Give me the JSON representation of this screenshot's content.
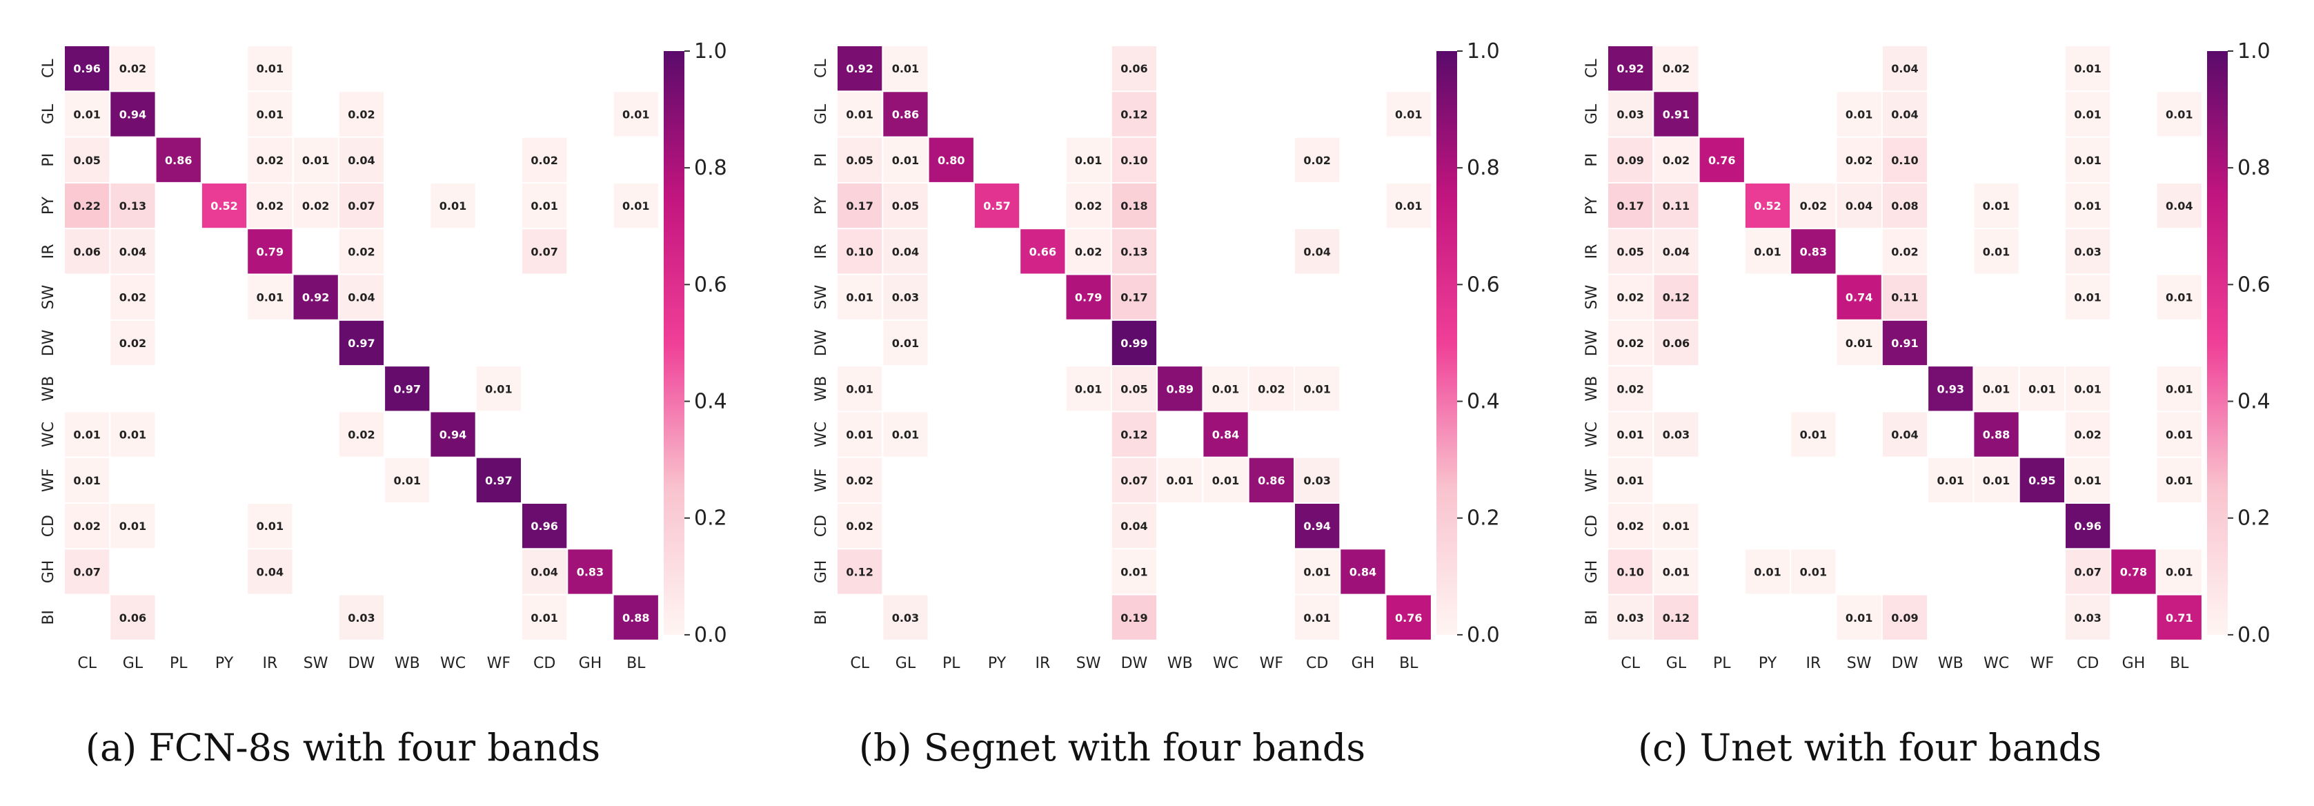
{
  "chart_data": [
    {
      "type": "heatmap",
      "caption": "(a) FCN-8s with four bands",
      "x_labels": [
        "CL",
        "GL",
        "PL",
        "PY",
        "IR",
        "SW",
        "DW",
        "WB",
        "WC",
        "WF",
        "CD",
        "GH",
        "BL"
      ],
      "y_labels": [
        "CL",
        "GL",
        "PI",
        "PY",
        "IR",
        "SW",
        "DW",
        "WB",
        "WC",
        "WF",
        "CD",
        "GH",
        "BI"
      ],
      "colorbar": {
        "min": 0.0,
        "max": 1.0,
        "ticks": [
          "0.0",
          "0.2",
          "0.4",
          "0.6",
          "0.8",
          "1.0"
        ],
        "colors": [
          "#fff5f3",
          "#f9c3ce",
          "#ef3f97",
          "#c2157f",
          "#5a0b6b"
        ]
      },
      "cells": [
        [
          0,
          0,
          0.96
        ],
        [
          0,
          1,
          0.02
        ],
        [
          0,
          4,
          0.01
        ],
        [
          1,
          0,
          0.01
        ],
        [
          1,
          1,
          0.94
        ],
        [
          1,
          4,
          0.01
        ],
        [
          1,
          6,
          0.02
        ],
        [
          1,
          12,
          0.01
        ],
        [
          2,
          0,
          0.05
        ],
        [
          2,
          2,
          0.86
        ],
        [
          2,
          4,
          0.02
        ],
        [
          2,
          5,
          0.01
        ],
        [
          2,
          6,
          0.04
        ],
        [
          2,
          10,
          0.02
        ],
        [
          3,
          0,
          0.22
        ],
        [
          3,
          1,
          0.13
        ],
        [
          3,
          3,
          0.52
        ],
        [
          3,
          4,
          0.02
        ],
        [
          3,
          5,
          0.02
        ],
        [
          3,
          6,
          0.07
        ],
        [
          3,
          8,
          0.01
        ],
        [
          3,
          10,
          0.01
        ],
        [
          3,
          12,
          0.01
        ],
        [
          4,
          0,
          0.06
        ],
        [
          4,
          1,
          0.04
        ],
        [
          4,
          4,
          0.79
        ],
        [
          4,
          6,
          0.02
        ],
        [
          4,
          10,
          0.07
        ],
        [
          5,
          1,
          0.02
        ],
        [
          5,
          4,
          0.01
        ],
        [
          5,
          5,
          0.92
        ],
        [
          5,
          6,
          0.04
        ],
        [
          6,
          1,
          0.02
        ],
        [
          6,
          6,
          0.97
        ],
        [
          7,
          7,
          0.97
        ],
        [
          7,
          9,
          0.01
        ],
        [
          8,
          0,
          0.01
        ],
        [
          8,
          1,
          0.01
        ],
        [
          8,
          6,
          0.02
        ],
        [
          8,
          8,
          0.94
        ],
        [
          9,
          0,
          0.01
        ],
        [
          9,
          7,
          0.01
        ],
        [
          9,
          9,
          0.97
        ],
        [
          10,
          0,
          0.02
        ],
        [
          10,
          1,
          0.01
        ],
        [
          10,
          4,
          0.01
        ],
        [
          10,
          10,
          0.96
        ],
        [
          11,
          0,
          0.07
        ],
        [
          11,
          4,
          0.04
        ],
        [
          11,
          10,
          0.04
        ],
        [
          11,
          11,
          0.83
        ],
        [
          12,
          1,
          0.06
        ],
        [
          12,
          6,
          0.03
        ],
        [
          12,
          10,
          0.01
        ],
        [
          12,
          12,
          0.88
        ]
      ]
    },
    {
      "type": "heatmap",
      "caption": "(b) Segnet with four bands",
      "x_labels": [
        "CL",
        "GL",
        "PL",
        "PY",
        "IR",
        "SW",
        "DW",
        "WB",
        "WC",
        "WF",
        "CD",
        "GH",
        "BL"
      ],
      "y_labels": [
        "CL",
        "GL",
        "PI",
        "PY",
        "IR",
        "SW",
        "DW",
        "WB",
        "WC",
        "WF",
        "CD",
        "GH",
        "BI"
      ],
      "colorbar": {
        "min": 0.0,
        "max": 1.0,
        "ticks": [
          "0.0",
          "0.2",
          "0.4",
          "0.6",
          "0.8",
          "1.0"
        ],
        "colors": [
          "#fff5f3",
          "#f9c3ce",
          "#ef3f97",
          "#c2157f",
          "#5a0b6b"
        ]
      },
      "cells": [
        [
          0,
          0,
          0.92
        ],
        [
          0,
          1,
          0.01
        ],
        [
          0,
          6,
          0.06
        ],
        [
          1,
          0,
          0.01
        ],
        [
          1,
          1,
          0.86
        ],
        [
          1,
          6,
          0.12
        ],
        [
          1,
          12,
          0.01
        ],
        [
          2,
          0,
          0.05
        ],
        [
          2,
          1,
          0.01
        ],
        [
          2,
          2,
          0.8
        ],
        [
          2,
          5,
          0.01
        ],
        [
          2,
          6,
          0.1
        ],
        [
          2,
          10,
          0.02
        ],
        [
          3,
          0,
          0.17
        ],
        [
          3,
          1,
          0.05
        ],
        [
          3,
          3,
          0.57
        ],
        [
          3,
          5,
          0.02
        ],
        [
          3,
          6,
          0.18
        ],
        [
          3,
          12,
          0.01
        ],
        [
          4,
          0,
          0.1
        ],
        [
          4,
          1,
          0.04
        ],
        [
          4,
          4,
          0.66
        ],
        [
          4,
          5,
          0.02
        ],
        [
          4,
          6,
          0.13
        ],
        [
          4,
          10,
          0.04
        ],
        [
          5,
          0,
          0.01
        ],
        [
          5,
          1,
          0.03
        ],
        [
          5,
          5,
          0.79
        ],
        [
          5,
          6,
          0.17
        ],
        [
          6,
          1,
          0.01
        ],
        [
          6,
          6,
          0.99
        ],
        [
          7,
          0,
          0.01
        ],
        [
          7,
          5,
          0.01
        ],
        [
          7,
          6,
          0.05
        ],
        [
          7,
          7,
          0.89
        ],
        [
          7,
          8,
          0.01
        ],
        [
          7,
          9,
          0.02
        ],
        [
          7,
          10,
          0.01
        ],
        [
          8,
          0,
          0.01
        ],
        [
          8,
          1,
          0.01
        ],
        [
          8,
          6,
          0.12
        ],
        [
          8,
          8,
          0.84
        ],
        [
          9,
          0,
          0.02
        ],
        [
          9,
          6,
          0.07
        ],
        [
          9,
          7,
          0.01
        ],
        [
          9,
          8,
          0.01
        ],
        [
          9,
          9,
          0.86
        ],
        [
          9,
          10,
          0.03
        ],
        [
          10,
          0,
          0.02
        ],
        [
          10,
          6,
          0.04
        ],
        [
          10,
          10,
          0.94
        ],
        [
          11,
          0,
          0.12
        ],
        [
          11,
          6,
          0.01
        ],
        [
          11,
          10,
          0.01
        ],
        [
          11,
          11,
          0.84
        ],
        [
          12,
          1,
          0.03
        ],
        [
          12,
          6,
          0.19
        ],
        [
          12,
          10,
          0.01
        ],
        [
          12,
          12,
          0.76
        ]
      ]
    },
    {
      "type": "heatmap",
      "caption": "(c) Unet with four bands",
      "x_labels": [
        "CL",
        "GL",
        "PL",
        "PY",
        "IR",
        "SW",
        "DW",
        "WB",
        "WC",
        "WF",
        "CD",
        "GH",
        "BL"
      ],
      "y_labels": [
        "CL",
        "GL",
        "PI",
        "PY",
        "IR",
        "SW",
        "DW",
        "WB",
        "WC",
        "WF",
        "CD",
        "GH",
        "BI"
      ],
      "colorbar": {
        "min": 0.0,
        "max": 1.0,
        "ticks": [
          "0.0",
          "0.2",
          "0.4",
          "0.6",
          "0.8",
          "1.0"
        ],
        "colors": [
          "#fff5f3",
          "#f9c3ce",
          "#ef3f97",
          "#c2157f",
          "#5a0b6b"
        ]
      },
      "cells": [
        [
          0,
          0,
          0.92
        ],
        [
          0,
          1,
          0.02
        ],
        [
          0,
          6,
          0.04
        ],
        [
          0,
          10,
          0.01
        ],
        [
          1,
          0,
          0.03
        ],
        [
          1,
          1,
          0.91
        ],
        [
          1,
          5,
          0.01
        ],
        [
          1,
          6,
          0.04
        ],
        [
          1,
          10,
          0.01
        ],
        [
          1,
          12,
          0.01
        ],
        [
          2,
          0,
          0.09
        ],
        [
          2,
          1,
          0.02
        ],
        [
          2,
          2,
          0.76
        ],
        [
          2,
          5,
          0.02
        ],
        [
          2,
          6,
          0.1
        ],
        [
          2,
          10,
          0.01
        ],
        [
          3,
          0,
          0.17
        ],
        [
          3,
          1,
          0.11
        ],
        [
          3,
          3,
          0.52
        ],
        [
          3,
          4,
          0.02
        ],
        [
          3,
          5,
          0.04
        ],
        [
          3,
          6,
          0.08
        ],
        [
          3,
          8,
          0.01
        ],
        [
          3,
          10,
          0.01
        ],
        [
          3,
          12,
          0.04
        ],
        [
          4,
          0,
          0.05
        ],
        [
          4,
          1,
          0.04
        ],
        [
          4,
          3,
          0.01
        ],
        [
          4,
          4,
          0.83
        ],
        [
          4,
          6,
          0.02
        ],
        [
          4,
          8,
          0.01
        ],
        [
          4,
          10,
          0.03
        ],
        [
          5,
          0,
          0.02
        ],
        [
          5,
          1,
          0.12
        ],
        [
          5,
          5,
          0.74
        ],
        [
          5,
          6,
          0.11
        ],
        [
          5,
          10,
          0.01
        ],
        [
          5,
          12,
          0.01
        ],
        [
          6,
          0,
          0.02
        ],
        [
          6,
          1,
          0.06
        ],
        [
          6,
          5,
          0.01
        ],
        [
          6,
          6,
          0.91
        ],
        [
          7,
          0,
          0.02
        ],
        [
          7,
          7,
          0.93
        ],
        [
          7,
          8,
          0.01
        ],
        [
          7,
          9,
          0.01
        ],
        [
          7,
          10,
          0.01
        ],
        [
          7,
          12,
          0.01
        ],
        [
          8,
          0,
          0.01
        ],
        [
          8,
          1,
          0.03
        ],
        [
          8,
          4,
          0.01
        ],
        [
          8,
          6,
          0.04
        ],
        [
          8,
          8,
          0.88
        ],
        [
          8,
          10,
          0.02
        ],
        [
          8,
          12,
          0.01
        ],
        [
          9,
          0,
          0.01
        ],
        [
          9,
          7,
          0.01
        ],
        [
          9,
          8,
          0.01
        ],
        [
          9,
          9,
          0.95
        ],
        [
          9,
          10,
          0.01
        ],
        [
          9,
          12,
          0.01
        ],
        [
          10,
          0,
          0.02
        ],
        [
          10,
          1,
          0.01
        ],
        [
          10,
          10,
          0.96
        ],
        [
          11,
          0,
          0.1
        ],
        [
          11,
          1,
          0.01
        ],
        [
          11,
          3,
          0.01
        ],
        [
          11,
          4,
          0.01
        ],
        [
          11,
          10,
          0.07
        ],
        [
          11,
          11,
          0.78
        ],
        [
          11,
          12,
          0.01
        ],
        [
          12,
          0,
          0.03
        ],
        [
          12,
          1,
          0.12
        ],
        [
          12,
          5,
          0.01
        ],
        [
          12,
          6,
          0.09
        ],
        [
          12,
          10,
          0.03
        ],
        [
          12,
          12,
          0.71
        ]
      ]
    }
  ]
}
